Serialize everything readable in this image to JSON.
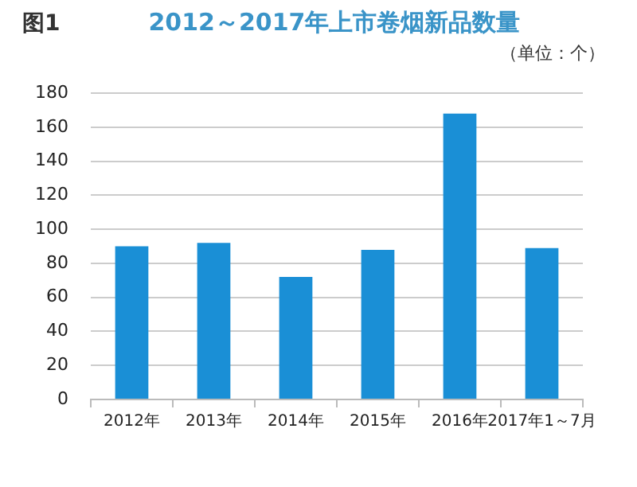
{
  "chart_data": {
    "type": "bar",
    "title": "2012～2017年上市卷烟新品数量",
    "annotations": [
      "图1",
      "（单位：个）"
    ],
    "categories": [
      "2012年",
      "2013年",
      "2014年",
      "2015年",
      "2016年",
      "2017年1～7月"
    ],
    "values": [
      90,
      92,
      72,
      88,
      168,
      89
    ],
    "color": "#1a8fd6",
    "ylim": [
      0,
      180
    ],
    "yticks": [
      0,
      20,
      40,
      60,
      80,
      100,
      120,
      140,
      160,
      180
    ],
    "grid": "y"
  }
}
